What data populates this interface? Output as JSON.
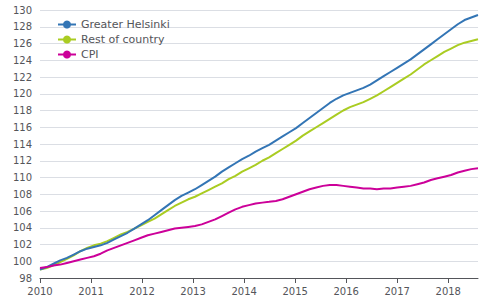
{
  "chart_data": {
    "type": "line",
    "x": [
      2010.0,
      2010.132046,
      2010.264092,
      2010.396138,
      2010.528185,
      2010.660231,
      2010.792277,
      2010.924323,
      2011.056369,
      2011.188415,
      2011.320462,
      2011.452508,
      2011.584554,
      2011.7166,
      2011.848646,
      2011.980692,
      2012.112738,
      2012.244785,
      2012.376831,
      2012.508877,
      2012.640923,
      2012.772969,
      2012.905015,
      2013.037062,
      2013.169108,
      2013.301154,
      2013.4332,
      2013.565246,
      2013.697292,
      2013.829338,
      2013.961385,
      2014.093431,
      2014.225477,
      2014.357523,
      2014.489569,
      2014.621615,
      2014.753662,
      2014.885708,
      2015.017754,
      2015.1498,
      2015.281846,
      2015.413892,
      2015.545938,
      2015.677985,
      2015.810031,
      2015.942077,
      2016.074123,
      2016.206169,
      2016.338215,
      2016.470262,
      2016.602308,
      2016.734354,
      2016.8664,
      2016.998446,
      2017.130492,
      2017.262538,
      2017.394585,
      2017.526631,
      2017.658677,
      2017.790723,
      2017.922769,
      2018.054815,
      2018.186862,
      2018.318908,
      2018.450954,
      2018.583
    ],
    "series": [
      {
        "name": "Greater Helsinki",
        "color": "#3375B5",
        "values": [
          99.0,
          99.3,
          99.7,
          100.1,
          100.4,
          100.8,
          101.2,
          101.5,
          101.7,
          101.9,
          102.2,
          102.6,
          103.0,
          103.4,
          103.9,
          104.4,
          104.9,
          105.5,
          106.1,
          106.7,
          107.3,
          107.8,
          108.2,
          108.6,
          109.1,
          109.6,
          110.1,
          110.7,
          111.2,
          111.7,
          112.2,
          112.6,
          113.1,
          113.5,
          113.9,
          114.4,
          114.9,
          115.4,
          115.9,
          116.5,
          117.1,
          117.7,
          118.3,
          118.9,
          119.4,
          119.8,
          120.1,
          120.4,
          120.7,
          121.1,
          121.6,
          122.1,
          122.6,
          123.1,
          123.6,
          124.1,
          124.7,
          125.3,
          125.9,
          126.5,
          127.1,
          127.7,
          128.3,
          128.8,
          129.1,
          129.4
        ]
      },
      {
        "name": "Rest of country",
        "color": "#AACC22",
        "values": [
          99.0,
          99.2,
          99.5,
          99.9,
          100.3,
          100.7,
          101.2,
          101.6,
          101.9,
          102.1,
          102.4,
          102.8,
          103.2,
          103.5,
          103.9,
          104.3,
          104.7,
          105.1,
          105.6,
          106.1,
          106.6,
          107.0,
          107.4,
          107.7,
          108.1,
          108.5,
          108.9,
          109.3,
          109.8,
          110.2,
          110.7,
          111.1,
          111.5,
          112.0,
          112.4,
          112.9,
          113.4,
          113.9,
          114.4,
          115.0,
          115.5,
          116.0,
          116.5,
          117.0,
          117.5,
          118.0,
          118.4,
          118.7,
          119.0,
          119.4,
          119.8,
          120.3,
          120.8,
          121.3,
          121.8,
          122.3,
          122.9,
          123.5,
          124.0,
          124.5,
          125.0,
          125.4,
          125.8,
          126.1,
          126.3,
          126.5
        ]
      },
      {
        "name": "CPI",
        "color": "#CC0099",
        "values": [
          99.2,
          99.3,
          99.5,
          99.6,
          99.8,
          100.0,
          100.2,
          100.4,
          100.6,
          100.9,
          101.3,
          101.6,
          101.9,
          102.2,
          102.5,
          102.8,
          103.1,
          103.3,
          103.5,
          103.7,
          103.9,
          104.0,
          104.1,
          104.2,
          104.4,
          104.7,
          105.0,
          105.4,
          105.8,
          106.2,
          106.5,
          106.7,
          106.9,
          107.0,
          107.1,
          107.2,
          107.4,
          107.7,
          108.0,
          108.3,
          108.6,
          108.8,
          109.0,
          109.1,
          109.1,
          109.0,
          108.9,
          108.8,
          108.7,
          108.7,
          108.6,
          108.7,
          108.7,
          108.8,
          108.9,
          109.0,
          109.2,
          109.4,
          109.7,
          109.9,
          110.1,
          110.3,
          110.6,
          110.8,
          111.0,
          111.1
        ]
      }
    ],
    "xlim": [
      2010.0,
      2018.583
    ],
    "ylim": [
      98,
      130
    ],
    "xticks": [
      2010,
      2011,
      2012,
      2013,
      2014,
      2015,
      2016,
      2017,
      2018
    ],
    "yticks": [
      98,
      100,
      102,
      104,
      106,
      108,
      110,
      112,
      114,
      116,
      118,
      120,
      122,
      124,
      126,
      128,
      130
    ],
    "grid": true,
    "legend": "upper left"
  }
}
